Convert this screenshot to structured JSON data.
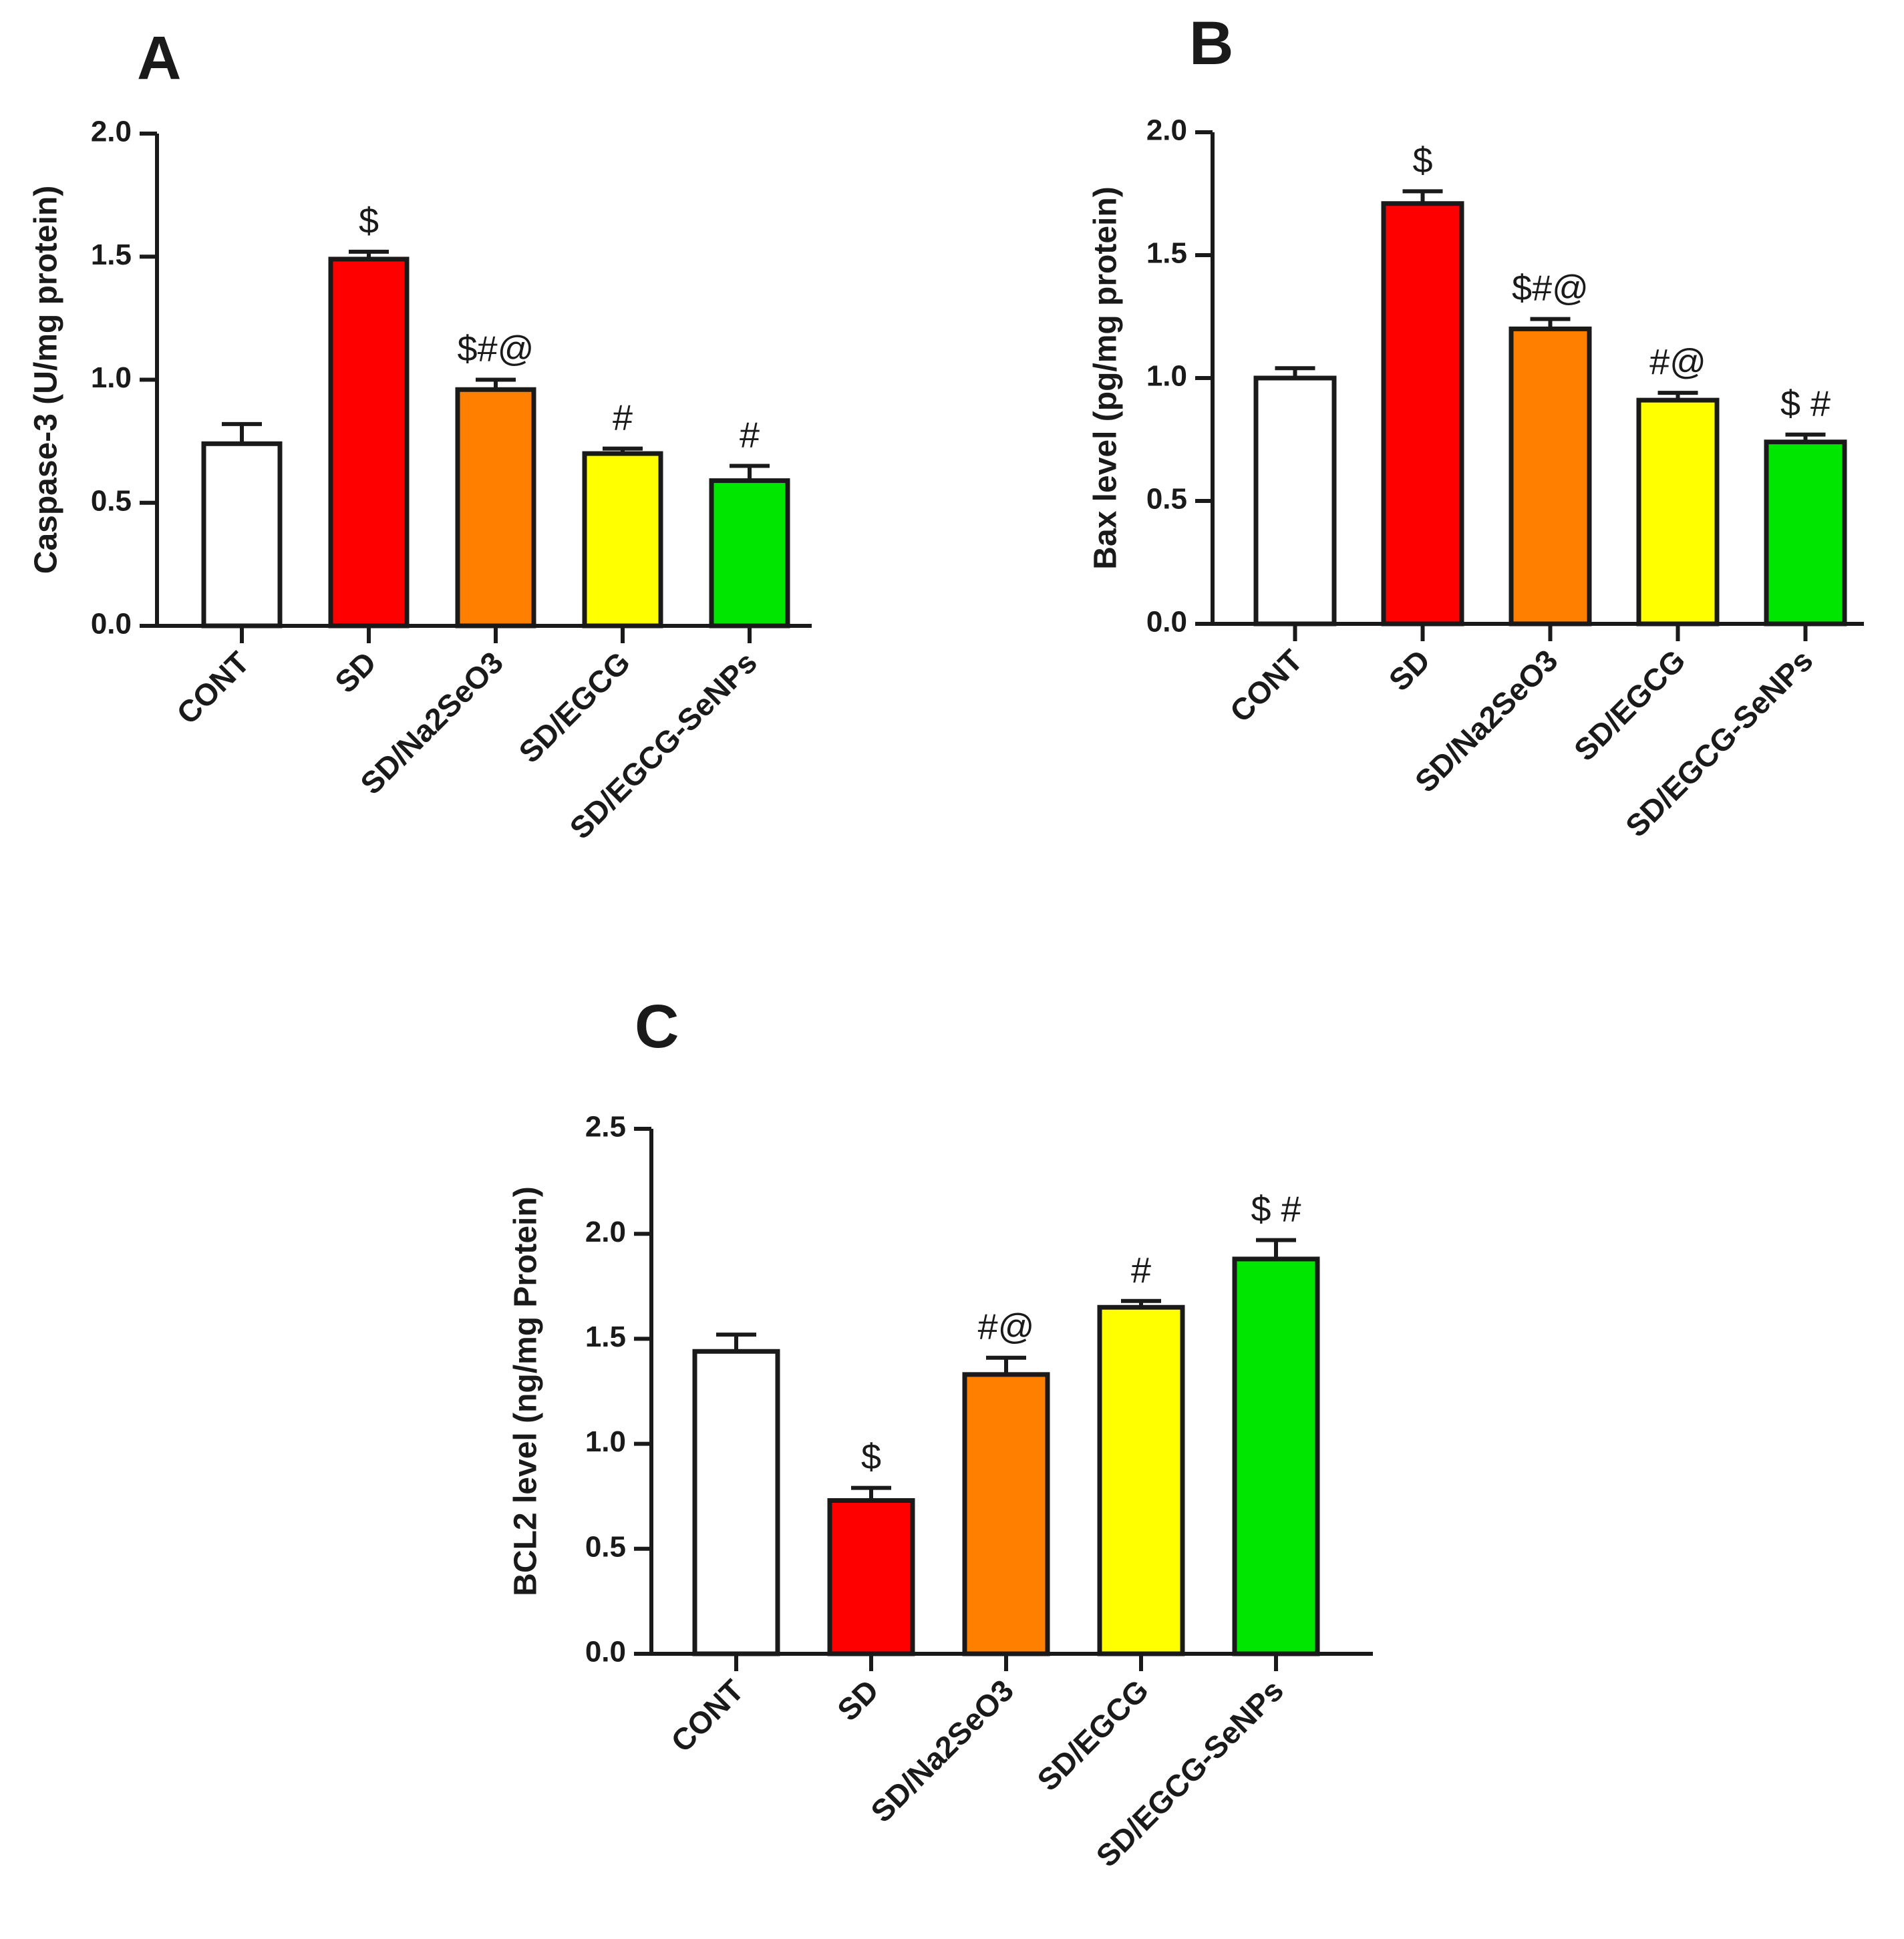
{
  "chart_data": [
    {
      "panel": "A",
      "type": "bar",
      "title": "",
      "xlabel": "",
      "ylabel": "Caspase-3 (U/mg protein)",
      "ylim": [
        0,
        2.0
      ],
      "yticks": [
        "0.0",
        "0.5",
        "1.0",
        "1.5",
        "2.0"
      ],
      "categories": [
        "CONT",
        "SD",
        "SD/Na2SeO3",
        "SD/EGCG",
        "SD/EGCG-SeNPs"
      ],
      "values": [
        0.74,
        1.49,
        0.96,
        0.7,
        0.59
      ],
      "errors": [
        0.08,
        0.03,
        0.04,
        0.02,
        0.06
      ],
      "annotations": [
        "",
        "$",
        "$#@",
        "#",
        "#"
      ],
      "colors": [
        "#ffffff",
        "#ff0000",
        "#ff8000",
        "#ffff00",
        "#00e600"
      ]
    },
    {
      "panel": "B",
      "type": "bar",
      "title": "",
      "xlabel": "",
      "ylabel": "Bax level (pg/mg protein)",
      "ylim": [
        0,
        2.0
      ],
      "yticks": [
        "0.0",
        "0.5",
        "1.0",
        "1.5",
        "2.0"
      ],
      "categories": [
        "CONT",
        "SD",
        "SD/Na2SeO3",
        "SD/EGCG",
        "SD/EGCG-SeNPs"
      ],
      "values": [
        1.0,
        1.71,
        1.2,
        0.91,
        0.74
      ],
      "errors": [
        0.04,
        0.05,
        0.04,
        0.03,
        0.03
      ],
      "annotations": [
        "",
        "$",
        "$#@",
        "#@",
        "$ #"
      ],
      "colors": [
        "#ffffff",
        "#ff0000",
        "#ff8000",
        "#ffff00",
        "#00e600"
      ]
    },
    {
      "panel": "C",
      "type": "bar",
      "title": "",
      "xlabel": "",
      "ylabel": "BCL2 level (ng/mg Protein)",
      "ylim": [
        0,
        2.5
      ],
      "yticks": [
        "0.0",
        "0.5",
        "1.0",
        "1.5",
        "2.0",
        "2.5"
      ],
      "categories": [
        "CONT",
        "SD",
        "SD/Na2SeO3",
        "SD/EGCG",
        "SD/EGCG-SeNPs"
      ],
      "values": [
        1.44,
        0.73,
        1.33,
        1.65,
        1.88
      ],
      "errors": [
        0.08,
        0.06,
        0.08,
        0.03,
        0.09
      ],
      "annotations": [
        "",
        "$",
        "#@",
        "#",
        "$ #"
      ],
      "colors": [
        "#ffffff",
        "#ff0000",
        "#ff8000",
        "#ffff00",
        "#00e600"
      ]
    }
  ]
}
